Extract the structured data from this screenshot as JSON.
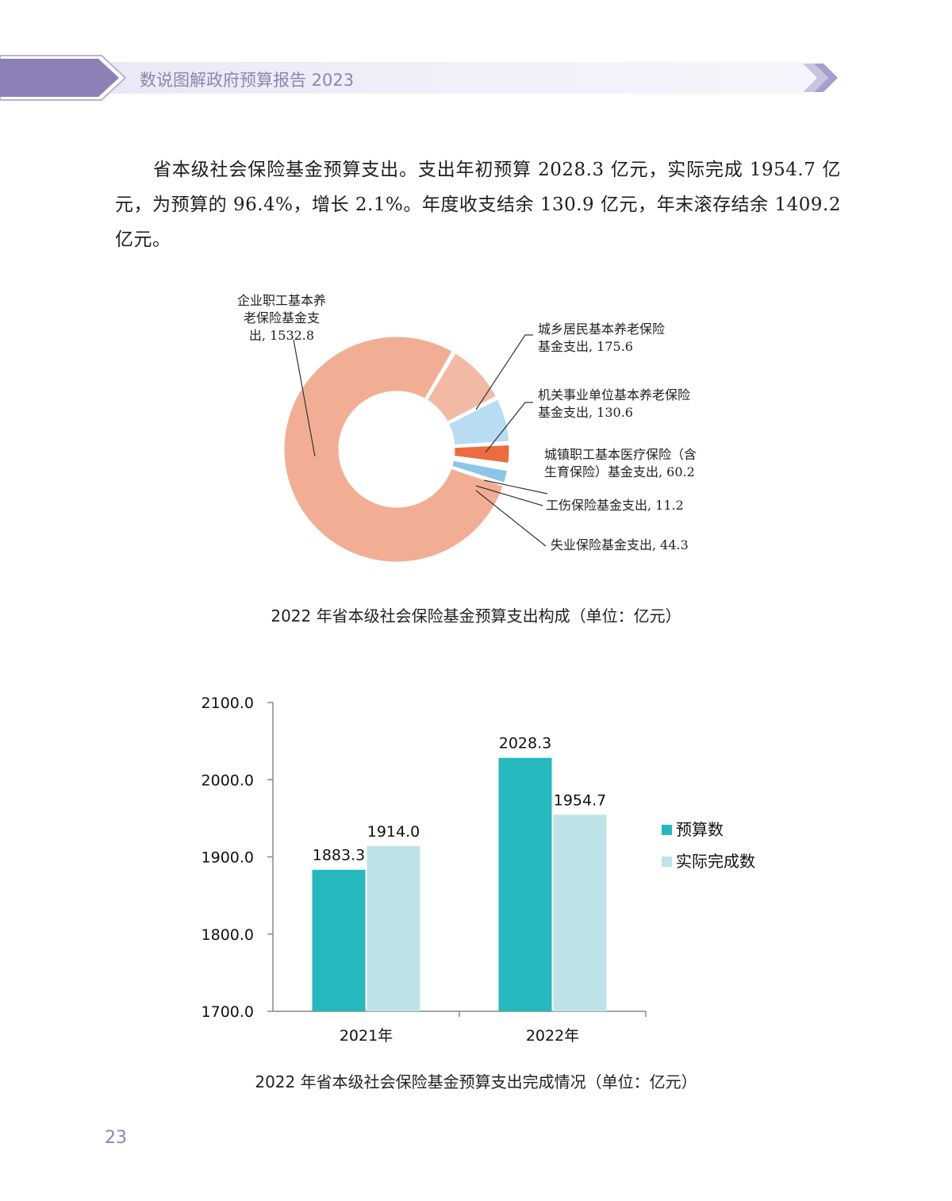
{
  "header": {
    "title": "数说图解政府预算报告 2023"
  },
  "paragraph": "省本级社会保险基金预算支出。支出年初预算 2028.3 亿元，实际完成 1954.7 亿元，为预算的 96.4%，增长 2.1%。年度收支结余 130.9 亿元，年末滚存结余 1409.2 亿元。",
  "colors": {
    "accent": "#8e84b3",
    "pie": [
      "#f2ae94",
      "#f2b9a5",
      "#b8dcf4",
      "#ec6b3f",
      "#e8e8e8",
      "#8cc4ea"
    ],
    "bar_budget": "#25b8bc",
    "bar_actual": "#bde3e8"
  },
  "chart_data": [
    {
      "type": "pie",
      "donut": true,
      "title": "2022 年省本级社会保险基金预算支出构成（单位：亿元）",
      "slices": [
        {
          "label_lines": [
            "企业职工基本养",
            "老保险基金支",
            "出, 1532.8"
          ],
          "value": 1532.8
        },
        {
          "label_lines": [
            "城乡居民基本养老保险",
            "基金支出, 175.6"
          ],
          "value": 175.6
        },
        {
          "label_lines": [
            "机关事业单位基本养老保险",
            "基金支出, 130.6"
          ],
          "value": 130.6
        },
        {
          "label_lines": [
            "城镇职工基本医疗保险（含",
            "生育保险）基金支出, 60.2"
          ],
          "value": 60.2
        },
        {
          "label_lines": [
            "工伤保险基金支出, 11.2"
          ],
          "value": 11.2
        },
        {
          "label_lines": [
            "失业保险基金支出, 44.3"
          ],
          "value": 44.3
        }
      ]
    },
    {
      "type": "bar",
      "title": "2022 年省本级社会保险基金预算支出完成情况（单位：亿元）",
      "categories": [
        "2021年",
        "2022年"
      ],
      "series": [
        {
          "name": "预算数",
          "values": [
            1883.3,
            2028.3
          ]
        },
        {
          "name": "实际完成数",
          "values": [
            1914.0,
            1954.7
          ]
        }
      ],
      "ylim": [
        1700,
        2100
      ],
      "yticks": [
        "1700.0",
        "1800.0",
        "1900.0",
        "2000.0",
        "2100.0"
      ],
      "value_labels": [
        [
          "1883.3",
          "2028.3"
        ],
        [
          "1914.0",
          "1954.7"
        ]
      ],
      "legend": "right"
    }
  ],
  "page_number": "23"
}
